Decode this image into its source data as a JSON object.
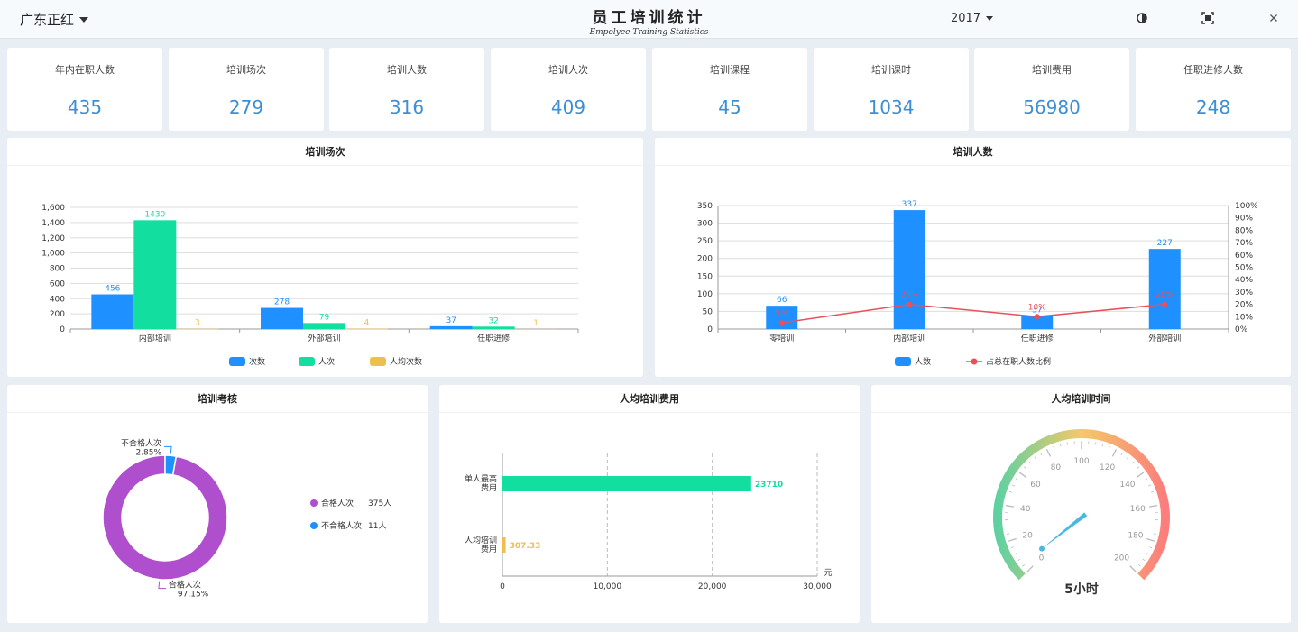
{
  "header": {
    "company": "广东正红",
    "title": "员工培训统计",
    "subtitle": "Empolyee Training Statistics",
    "year": "2017",
    "icons": [
      "contrast-icon",
      "fullscreen-icon",
      "close-icon"
    ]
  },
  "kpis": [
    {
      "label": "年内在职人数",
      "value": "435"
    },
    {
      "label": "培训场次",
      "value": "279"
    },
    {
      "label": "培训人数",
      "value": "316"
    },
    {
      "label": "培训人次",
      "value": "409"
    },
    {
      "label": "培训课程",
      "value": "45"
    },
    {
      "label": "培训课时",
      "value": "1034"
    },
    {
      "label": "培训费用",
      "value": "56980"
    },
    {
      "label": "任职进修人数",
      "value": "248"
    }
  ],
  "colors": {
    "blue": "#1e90ff",
    "green": "#12dea0",
    "yellow": "#f0bd4f",
    "red": "#e8505b",
    "purple": "#b04fcd",
    "kpi": "#3d8fd4"
  },
  "chart_data": [
    {
      "type": "bar",
      "title": "培训场次",
      "categories": [
        "内部培训",
        "外部培训",
        "任职进修"
      ],
      "series": [
        {
          "name": "次数",
          "values": [
            456,
            278,
            37
          ]
        },
        {
          "name": "人次",
          "values": [
            1430,
            79,
            32
          ]
        },
        {
          "name": "人均次数",
          "values": [
            3,
            4,
            1
          ]
        }
      ],
      "ylim": [
        0,
        1600
      ],
      "yticks": [
        "0",
        "200",
        "400",
        "600",
        "800",
        "1,000",
        "1,200",
        "1,400",
        "1,600"
      ],
      "legend": "bottom"
    },
    {
      "type": "bar",
      "title": "培训人数",
      "categories": [
        "零培训",
        "内部培训",
        "任职进修",
        "外部培训"
      ],
      "series": [
        {
          "name": "人数",
          "values": [
            66,
            337,
            37,
            227
          ]
        },
        {
          "name": "占总在职人数比例",
          "type": "line",
          "values": [
            5,
            20,
            10,
            20
          ],
          "labels": [
            "5%",
            "20%",
            "10%",
            "20%"
          ]
        }
      ],
      "ylim": [
        0,
        350
      ],
      "yticks": [
        "0",
        "50",
        "100",
        "150",
        "200",
        "250",
        "300",
        "350"
      ],
      "y2lim": [
        0,
        100
      ],
      "y2ticks": [
        "0%",
        "10%",
        "20%",
        "30%",
        "40%",
        "50%",
        "60%",
        "70%",
        "80%",
        "90%",
        "100%"
      ],
      "legend": "bottom"
    },
    {
      "type": "pie",
      "title": "培训考核",
      "slices": [
        {
          "name": "合格人次",
          "value": 375,
          "unit": "375人",
          "percent": "97.15%"
        },
        {
          "name": "不合格人次",
          "value": 11,
          "unit": "11人",
          "percent": "2.85%"
        }
      ],
      "legend": "right"
    },
    {
      "type": "bar",
      "orientation": "horizontal",
      "title": "人均培训费用",
      "categories": [
        "单人最高\n费用",
        "人均培训\n费用"
      ],
      "values": [
        23710,
        307.33
      ],
      "value_labels": [
        "23710",
        "307.33"
      ],
      "xlim": [
        0,
        30000
      ],
      "xticks": [
        "0",
        "10,000",
        "20,000",
        "30,000"
      ],
      "xunit": "元"
    },
    {
      "type": "gauge",
      "title": "人均培训时间",
      "value": 5,
      "display": "5小时",
      "min": 0,
      "max": 200,
      "ticks": [
        "0",
        "20",
        "40",
        "60",
        "80",
        "100",
        "120",
        "140",
        "160",
        "180",
        "200"
      ]
    }
  ]
}
